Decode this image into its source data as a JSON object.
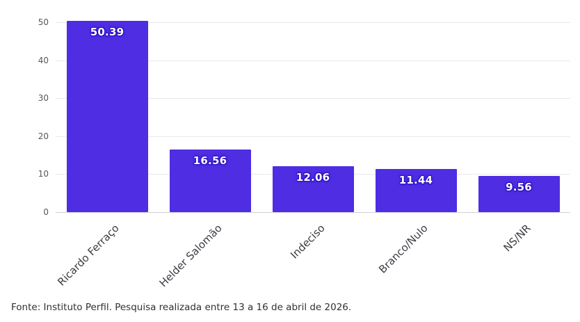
{
  "chart_data": {
    "type": "bar",
    "title": "",
    "xlabel": "",
    "ylabel": "",
    "categories": [
      "Ricardo Ferraço",
      "Helder Salomão",
      "Indeciso",
      "Branco/Nulo",
      "NS/NR"
    ],
    "values": [
      50.39,
      16.56,
      12.06,
      11.44,
      9.56
    ],
    "value_labels": [
      "50.39",
      "16.56",
      "12.06",
      "11.44",
      "9.56"
    ],
    "yticks": [
      0,
      10,
      20,
      30,
      40,
      50
    ],
    "ylim": [
      0,
      52
    ],
    "grid": true,
    "legend": "none",
    "bar_color": "#4f2de2",
    "bar_outline_color": "#2a0ec0",
    "grid_color": "#e9e9ef",
    "axis_text_color": "#55555e"
  },
  "footer": {
    "text": "Fonte: Instituto Perfil. Pesquisa realizada entre 13 a 16 de abril de 2026."
  }
}
